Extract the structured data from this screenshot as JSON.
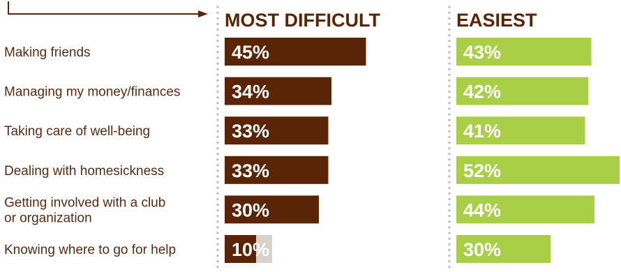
{
  "chart_data": {
    "type": "bar",
    "categories": [
      [
        "Making friends"
      ],
      [
        "Managing my money/finances"
      ],
      [
        "Taking care of well-being"
      ],
      [
        "Dealing with homesickness"
      ],
      [
        "Getting involved with a club",
        "or organization"
      ],
      [
        "Knowing where to go for help"
      ]
    ],
    "series": [
      {
        "name": "MOST DIFFICULT",
        "values": [
          45,
          34,
          33,
          33,
          30,
          10
        ],
        "color": "#5a2406",
        "track_color": "#d9d1cc"
      },
      {
        "name": "EASIEST",
        "values": [
          43,
          42,
          41,
          52,
          44,
          30
        ],
        "color": "#a8cf45"
      }
    ],
    "value_suffix": "%",
    "xlim": [
      0,
      100
    ],
    "label_color": "#5a2a12",
    "title_color": "#5a2406",
    "divider_color": "#c8bfb8",
    "arrow_color": "#5a2406"
  }
}
